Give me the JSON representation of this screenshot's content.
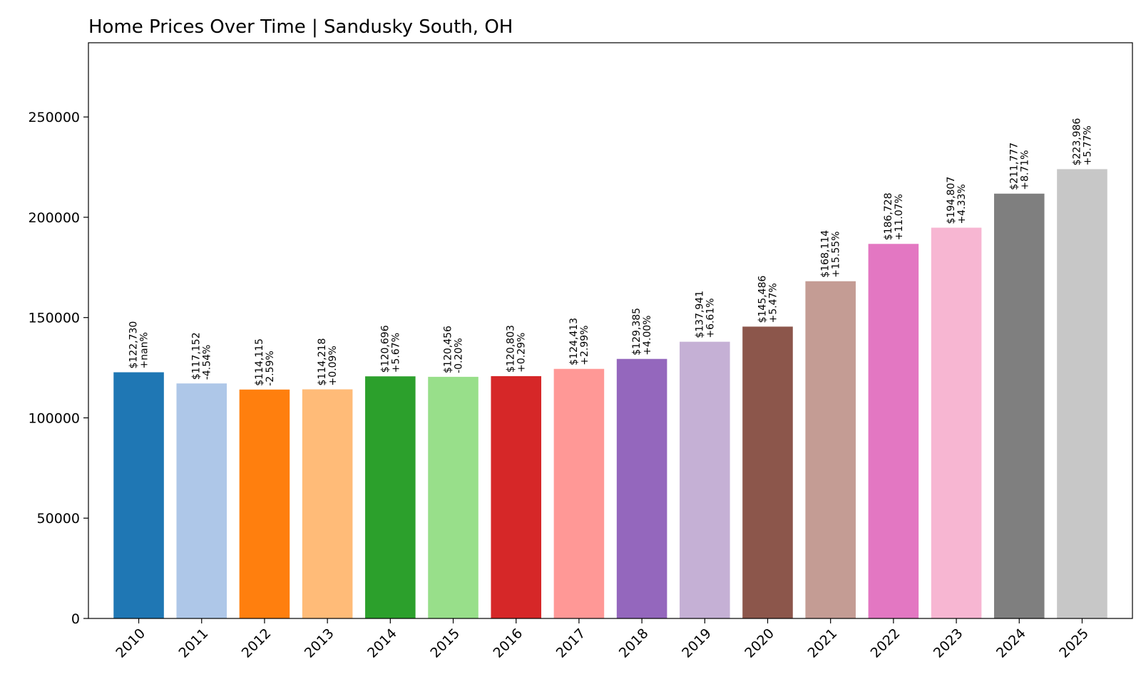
{
  "chart_data": {
    "type": "bar",
    "title": "Home Prices Over Time | Sandusky South, OH",
    "xlabel": "",
    "ylabel": "",
    "ylim": [
      0,
      287000
    ],
    "yticks": [
      0,
      50000,
      100000,
      150000,
      200000,
      250000
    ],
    "grid": false,
    "categories": [
      "2010",
      "2011",
      "2012",
      "2013",
      "2014",
      "2015",
      "2016",
      "2017",
      "2018",
      "2019",
      "2020",
      "2021",
      "2022",
      "2023",
      "2024",
      "2025"
    ],
    "values": [
      122730,
      117152,
      114115,
      114218,
      120696,
      120456,
      120803,
      124413,
      129385,
      137941,
      145486,
      168114,
      186728,
      194807,
      211777,
      223986
    ],
    "value_labels": [
      "$122,730",
      "$117,152",
      "$114,115",
      "$114,218",
      "$120,696",
      "$120,456",
      "$120,803",
      "$124,413",
      "$129,385",
      "$137,941",
      "$145,486",
      "$168,114",
      "$186,728",
      "$194,807",
      "$211,777",
      "$223,986"
    ],
    "change_labels": [
      "+nan%",
      "-4.54%",
      "-2.59%",
      "+0.09%",
      "+5.67%",
      "-0.20%",
      "+0.29%",
      "+2.99%",
      "+4.00%",
      "+6.61%",
      "+5.47%",
      "+15.55%",
      "+11.07%",
      "+4.33%",
      "+8.71%",
      "+5.77%"
    ],
    "colors": [
      "#1f77b4",
      "#aec7e8",
      "#ff7f0e",
      "#ffbb78",
      "#2ca02c",
      "#98df8a",
      "#d62728",
      "#ff9896",
      "#9467bd",
      "#c5b0d5",
      "#8c564b",
      "#c49c94",
      "#e377c2",
      "#f7b6d2",
      "#7f7f7f",
      "#c7c7c7"
    ]
  }
}
